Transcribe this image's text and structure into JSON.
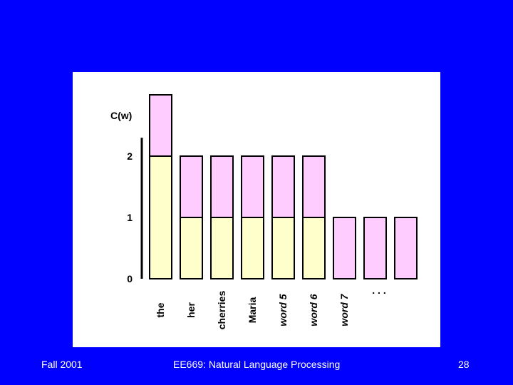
{
  "footer": {
    "left": "Fall 2001",
    "center": "EE669: Natural Language Processing",
    "right": "28"
  },
  "colors": {
    "background": "#0000ff",
    "panel": "#ffffff",
    "lower_segment": "#ffffcc",
    "upper_segment": "#ffccff",
    "outline": "#000000"
  },
  "chart_data": {
    "type": "bar",
    "stacked": true,
    "ylabel": "C(w)",
    "yticks": [
      "0",
      "1",
      "2"
    ],
    "ylim": [
      0,
      3
    ],
    "categories": [
      "the",
      "her",
      "cherries",
      "Maria",
      "word 5",
      "word 6",
      "word 7",
      "",
      ""
    ],
    "italic_categories": [
      "word 5",
      "word 6",
      "word 7"
    ],
    "ellipsis_label": ". . .",
    "series": [
      {
        "values": [
          2,
          1,
          1,
          1,
          1,
          1,
          0,
          0,
          0
        ],
        "color": "#ffffcc"
      },
      {
        "values": [
          1,
          1,
          1,
          1,
          1,
          1,
          1,
          1,
          1
        ],
        "color": "#ffccff"
      }
    ]
  }
}
